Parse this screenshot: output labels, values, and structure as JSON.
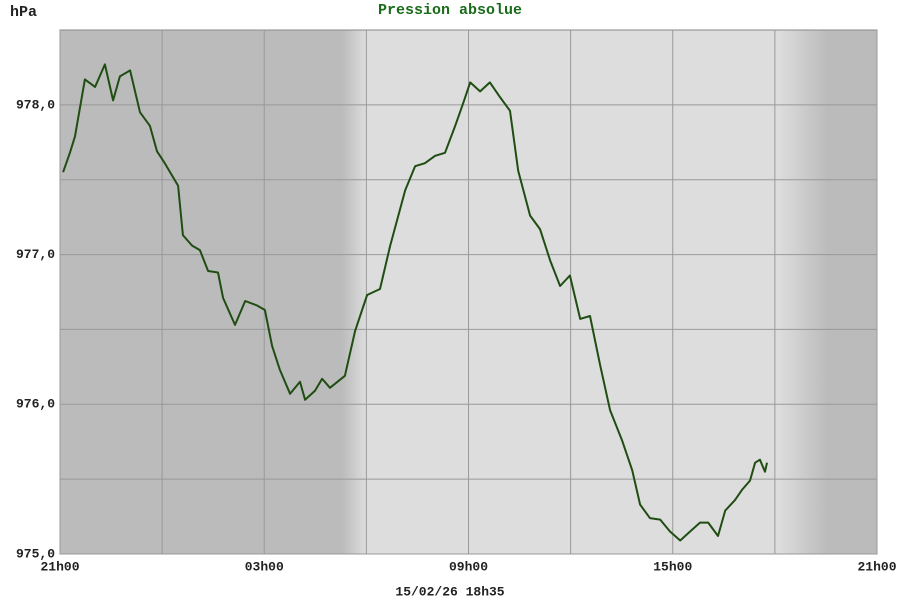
{
  "chart_data": {
    "type": "line",
    "title": "Pression absolue",
    "y_label": "hPa",
    "footer": "15/02/26 18h35",
    "color": "#1f4d12",
    "title_color": "#1a6b1a",
    "xlim": [
      0,
      24
    ],
    "xticks": [
      {
        "value": 0,
        "label": "21h00"
      },
      {
        "value": 6,
        "label": "03h00"
      },
      {
        "value": 12,
        "label": "09h00"
      },
      {
        "value": 18,
        "label": "15h00"
      },
      {
        "value": 24,
        "label": "21h00"
      }
    ],
    "xminor": [
      3,
      9,
      15,
      21
    ],
    "ylim": [
      975,
      978.5
    ],
    "yticks": [
      {
        "value": 975,
        "label": "975,0"
      },
      {
        "value": 976,
        "label": "976,0"
      },
      {
        "value": 977,
        "label": "977,0"
      },
      {
        "value": 978,
        "label": "978,0"
      }
    ],
    "yminor": [
      975.5,
      976.5,
      977.5
    ],
    "grid": true,
    "x": [
      0.09,
      0.29,
      0.44,
      0.73,
      1.03,
      1.32,
      1.56,
      1.76,
      2.06,
      2.35,
      2.64,
      2.85,
      3.08,
      3.47,
      3.61,
      3.88,
      4.11,
      4.35,
      4.64,
      4.79,
      5.14,
      5.44,
      5.79,
      6.02,
      6.23,
      6.46,
      6.76,
      7.05,
      7.2,
      7.49,
      7.7,
      7.93,
      8.37,
      8.67,
      9.02,
      9.4,
      9.7,
      10.14,
      10.43,
      10.72,
      11.02,
      11.31,
      11.61,
      11.84,
      12.05,
      12.34,
      12.63,
      12.93,
      13.22,
      13.46,
      13.81,
      14.1,
      14.4,
      14.69,
      14.98,
      15.28,
      15.57,
      15.87,
      16.16,
      16.51,
      16.81,
      17.04,
      17.33,
      17.63,
      17.92,
      18.22,
      18.51,
      18.8,
      19.04,
      19.33,
      19.54,
      19.83,
      20.04,
      20.27,
      20.42,
      20.56,
      20.71,
      20.77
    ],
    "values": [
      977.55,
      977.68,
      977.79,
      978.17,
      978.12,
      978.27,
      978.03,
      978.19,
      978.23,
      977.95,
      977.86,
      977.69,
      977.61,
      977.46,
      977.13,
      977.06,
      977.03,
      976.89,
      976.88,
      976.71,
      976.53,
      976.69,
      976.66,
      976.63,
      976.39,
      976.23,
      976.07,
      976.15,
      976.03,
      976.09,
      976.17,
      976.11,
      976.19,
      976.49,
      976.73,
      976.77,
      977.06,
      977.43,
      977.59,
      977.61,
      977.66,
      977.68,
      977.86,
      978.01,
      978.15,
      978.09,
      978.15,
      978.05,
      977.96,
      977.56,
      977.26,
      977.17,
      976.96,
      976.79,
      976.86,
      976.57,
      976.59,
      976.26,
      975.96,
      975.76,
      975.56,
      975.33,
      975.24,
      975.23,
      975.15,
      975.09,
      975.15,
      975.21,
      975.21,
      975.12,
      975.29,
      975.36,
      975.43,
      975.49,
      975.61,
      975.63,
      975.55,
      975.61
    ]
  }
}
